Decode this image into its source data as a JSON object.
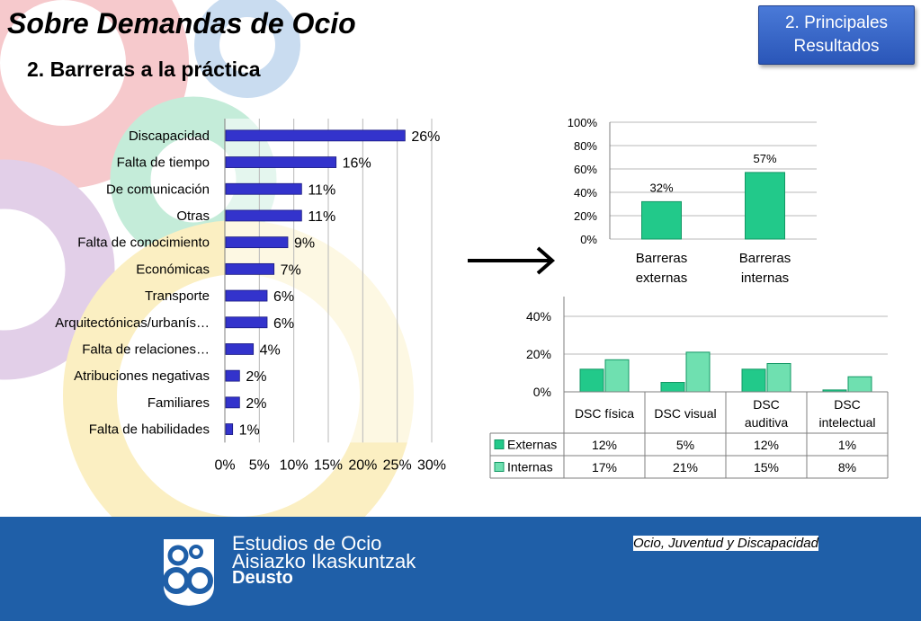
{
  "header": {
    "title": "Sobre Demandas de Ocio",
    "subtitle": "2.  Barreras a la práctica",
    "badge_line1": "2. Principales",
    "badge_line2": "Resultados"
  },
  "footer": {
    "brand_line1": "Estudios de Ocio",
    "brand_line2": "Aisiazko Ikaskuntzak",
    "brand_line3": "Deusto",
    "tagline": "Ocio, Juventud y Discapacidad"
  },
  "colors": {
    "bar_blue": "#3333cc",
    "bar_green": "#22c98a",
    "bar_green_light": "#6fe0b0",
    "footer_blue": "#1f5fa8"
  },
  "chart_data": [
    {
      "type": "bar",
      "orientation": "horizontal",
      "categories": [
        "Discapacidad",
        "Falta de tiempo",
        "De comunicación",
        "Otras",
        "Falta de conocimiento",
        "Económicas",
        "Transporte",
        "Arquitectónicas/urbanís…",
        "Falta de relaciones…",
        "Atribuciones negativas",
        "Familiares",
        "Falta de habilidades"
      ],
      "values": [
        26,
        16,
        11,
        11,
        9,
        7,
        6,
        6,
        4,
        2,
        2,
        1
      ],
      "data_labels": [
        "26%",
        "16%",
        "11%",
        "11%",
        "9%",
        "7%",
        "6%",
        "6%",
        "4%",
        "2%",
        "2%",
        "1%"
      ],
      "xlim": [
        0,
        30
      ],
      "x_ticks": [
        "0%",
        "5%",
        "10%",
        "15%",
        "20%",
        "25%",
        "30%"
      ],
      "grid": true
    },
    {
      "type": "bar",
      "categories": [
        "Barreras externas",
        "Barreras internas"
      ],
      "category_lines": [
        [
          "Barreras",
          "externas"
        ],
        [
          "Barreras",
          "internas"
        ]
      ],
      "values": [
        32,
        57
      ],
      "data_labels": [
        "32%",
        "57%"
      ],
      "ylim": [
        0,
        100
      ],
      "y_ticks": [
        "100%",
        "80%",
        "60%",
        "40%",
        "20%",
        "0%"
      ],
      "grid": true
    },
    {
      "type": "bar",
      "categories": [
        "DSC física",
        "DSC visual",
        "DSC auditiva",
        "DSC intelectual"
      ],
      "category_lines": [
        [
          "DSC física"
        ],
        [
          "DSC visual"
        ],
        [
          "DSC",
          "auditiva"
        ],
        [
          "DSC",
          "intelectual"
        ]
      ],
      "series": [
        {
          "name": "Externas",
          "values": [
            12,
            5,
            12,
            1
          ],
          "labels": [
            "12%",
            "5%",
            "12%",
            "1%"
          ]
        },
        {
          "name": "Internas",
          "values": [
            17,
            21,
            15,
            8
          ],
          "labels": [
            "17%",
            "21%",
            "15%",
            "8%"
          ]
        }
      ],
      "ylim": [
        0,
        40
      ],
      "y_ticks": [
        "40%",
        "20%",
        "0%"
      ],
      "grid": true,
      "data_table": true
    }
  ]
}
